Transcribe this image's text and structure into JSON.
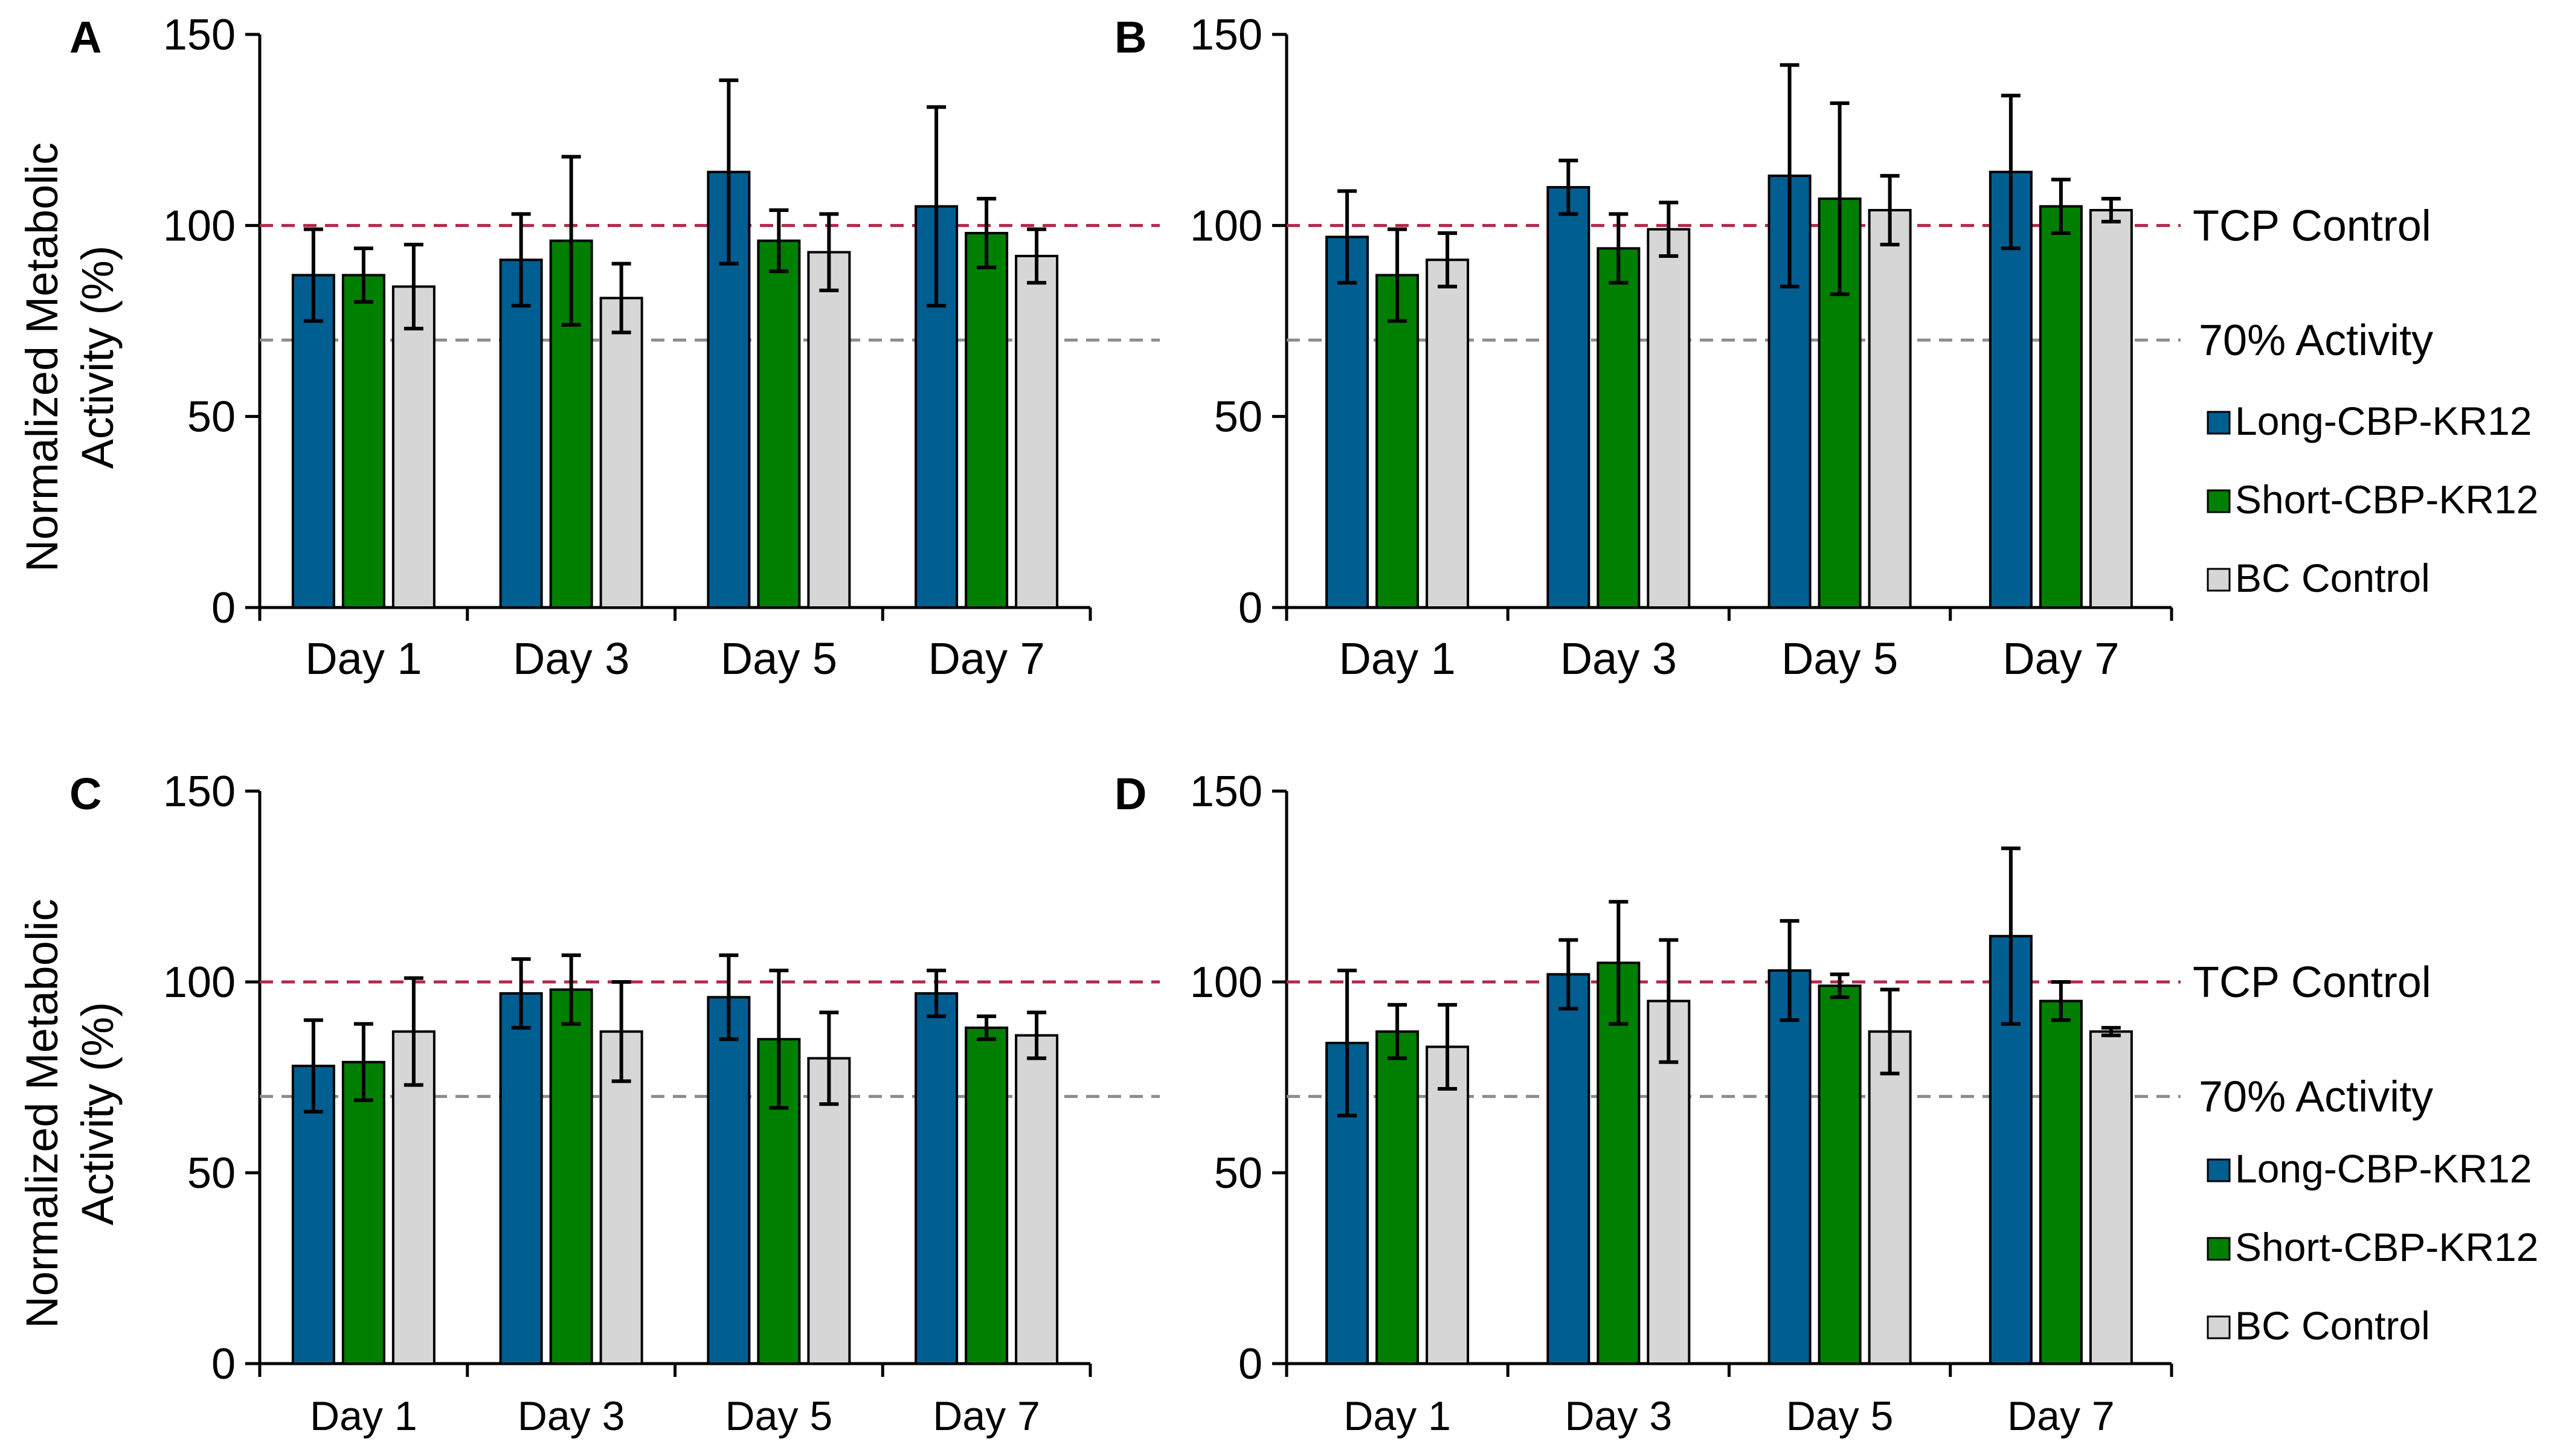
{
  "colors": {
    "long": "#005e91",
    "short": "#007f00",
    "bc": "#d6d6d6",
    "tcp_line": "#b3294a",
    "activity_line": "#8c8c8c",
    "activity_text": "#8c8c8c",
    "axis": "#000000"
  },
  "y_axis_label": [
    "Normalized Metabolic",
    "Activity (%)"
  ],
  "reference_lines": {
    "tcp": {
      "value": 100,
      "label": "TCP Control"
    },
    "activity": {
      "value": 70,
      "label": "70% Activity"
    }
  },
  "legend": [
    "Long-CBP-KR12",
    "Short-CBP-KR12",
    "BC Control"
  ],
  "chart_data": [
    {
      "panel": "A",
      "type": "bar",
      "categories": [
        "Day 1",
        "Day 3",
        "Day 5",
        "Day 7"
      ],
      "ylim": [
        0,
        150
      ],
      "yticks": [
        0,
        50,
        100,
        150
      ],
      "series": [
        {
          "name": "Long-CBP-KR12",
          "values": [
            87,
            91,
            114,
            105
          ],
          "errors": [
            12,
            12,
            24,
            26
          ]
        },
        {
          "name": "Short-CBP-KR12",
          "values": [
            87,
            96,
            96,
            98
          ],
          "errors": [
            7,
            22,
            8,
            9
          ]
        },
        {
          "name": "BC Control",
          "values": [
            84,
            81,
            93,
            92
          ],
          "errors": [
            11,
            9,
            10,
            7
          ]
        }
      ]
    },
    {
      "panel": "B",
      "type": "bar",
      "categories": [
        "Day 1",
        "Day 3",
        "Day 5",
        "Day 7"
      ],
      "ylim": [
        0,
        150
      ],
      "yticks": [
        0,
        50,
        100,
        150
      ],
      "series": [
        {
          "name": "Long-CBP-KR12",
          "values": [
            97,
            110,
            113,
            114
          ],
          "errors": [
            12,
            7,
            29,
            20
          ]
        },
        {
          "name": "Short-CBP-KR12",
          "values": [
            87,
            94,
            107,
            105
          ],
          "errors": [
            12,
            9,
            25,
            7
          ]
        },
        {
          "name": "BC Control",
          "values": [
            91,
            99,
            104,
            104
          ],
          "errors": [
            7,
            7,
            9,
            3
          ]
        }
      ]
    },
    {
      "panel": "C",
      "type": "bar",
      "categories": [
        "Day 1",
        "Day 3",
        "Day 5",
        "Day 7"
      ],
      "ylim": [
        0,
        150
      ],
      "yticks": [
        0,
        50,
        100,
        150
      ],
      "series": [
        {
          "name": "Long-CBP-KR12",
          "values": [
            78,
            97,
            96,
            97
          ],
          "errors": [
            12,
            9,
            11,
            6
          ]
        },
        {
          "name": "Short-CBP-KR12",
          "values": [
            79,
            98,
            85,
            88
          ],
          "errors": [
            10,
            9,
            18,
            3
          ]
        },
        {
          "name": "BC Control",
          "values": [
            87,
            87,
            80,
            86
          ],
          "errors": [
            14,
            13,
            12,
            6
          ]
        }
      ]
    },
    {
      "panel": "D",
      "type": "bar",
      "categories": [
        "Day 1",
        "Day 3",
        "Day 5",
        "Day 7"
      ],
      "ylim": [
        0,
        150
      ],
      "yticks": [
        0,
        50,
        100,
        150
      ],
      "series": [
        {
          "name": "Long-CBP-KR12",
          "values": [
            84,
            102,
            103,
            112
          ],
          "errors": [
            19,
            9,
            13,
            23
          ]
        },
        {
          "name": "Short-CBP-KR12",
          "values": [
            87,
            105,
            99,
            95
          ],
          "errors": [
            7,
            16,
            3,
            5
          ]
        },
        {
          "name": "BC Control",
          "values": [
            83,
            95,
            87,
            87
          ],
          "errors": [
            11,
            16,
            11,
            1
          ]
        }
      ]
    }
  ]
}
